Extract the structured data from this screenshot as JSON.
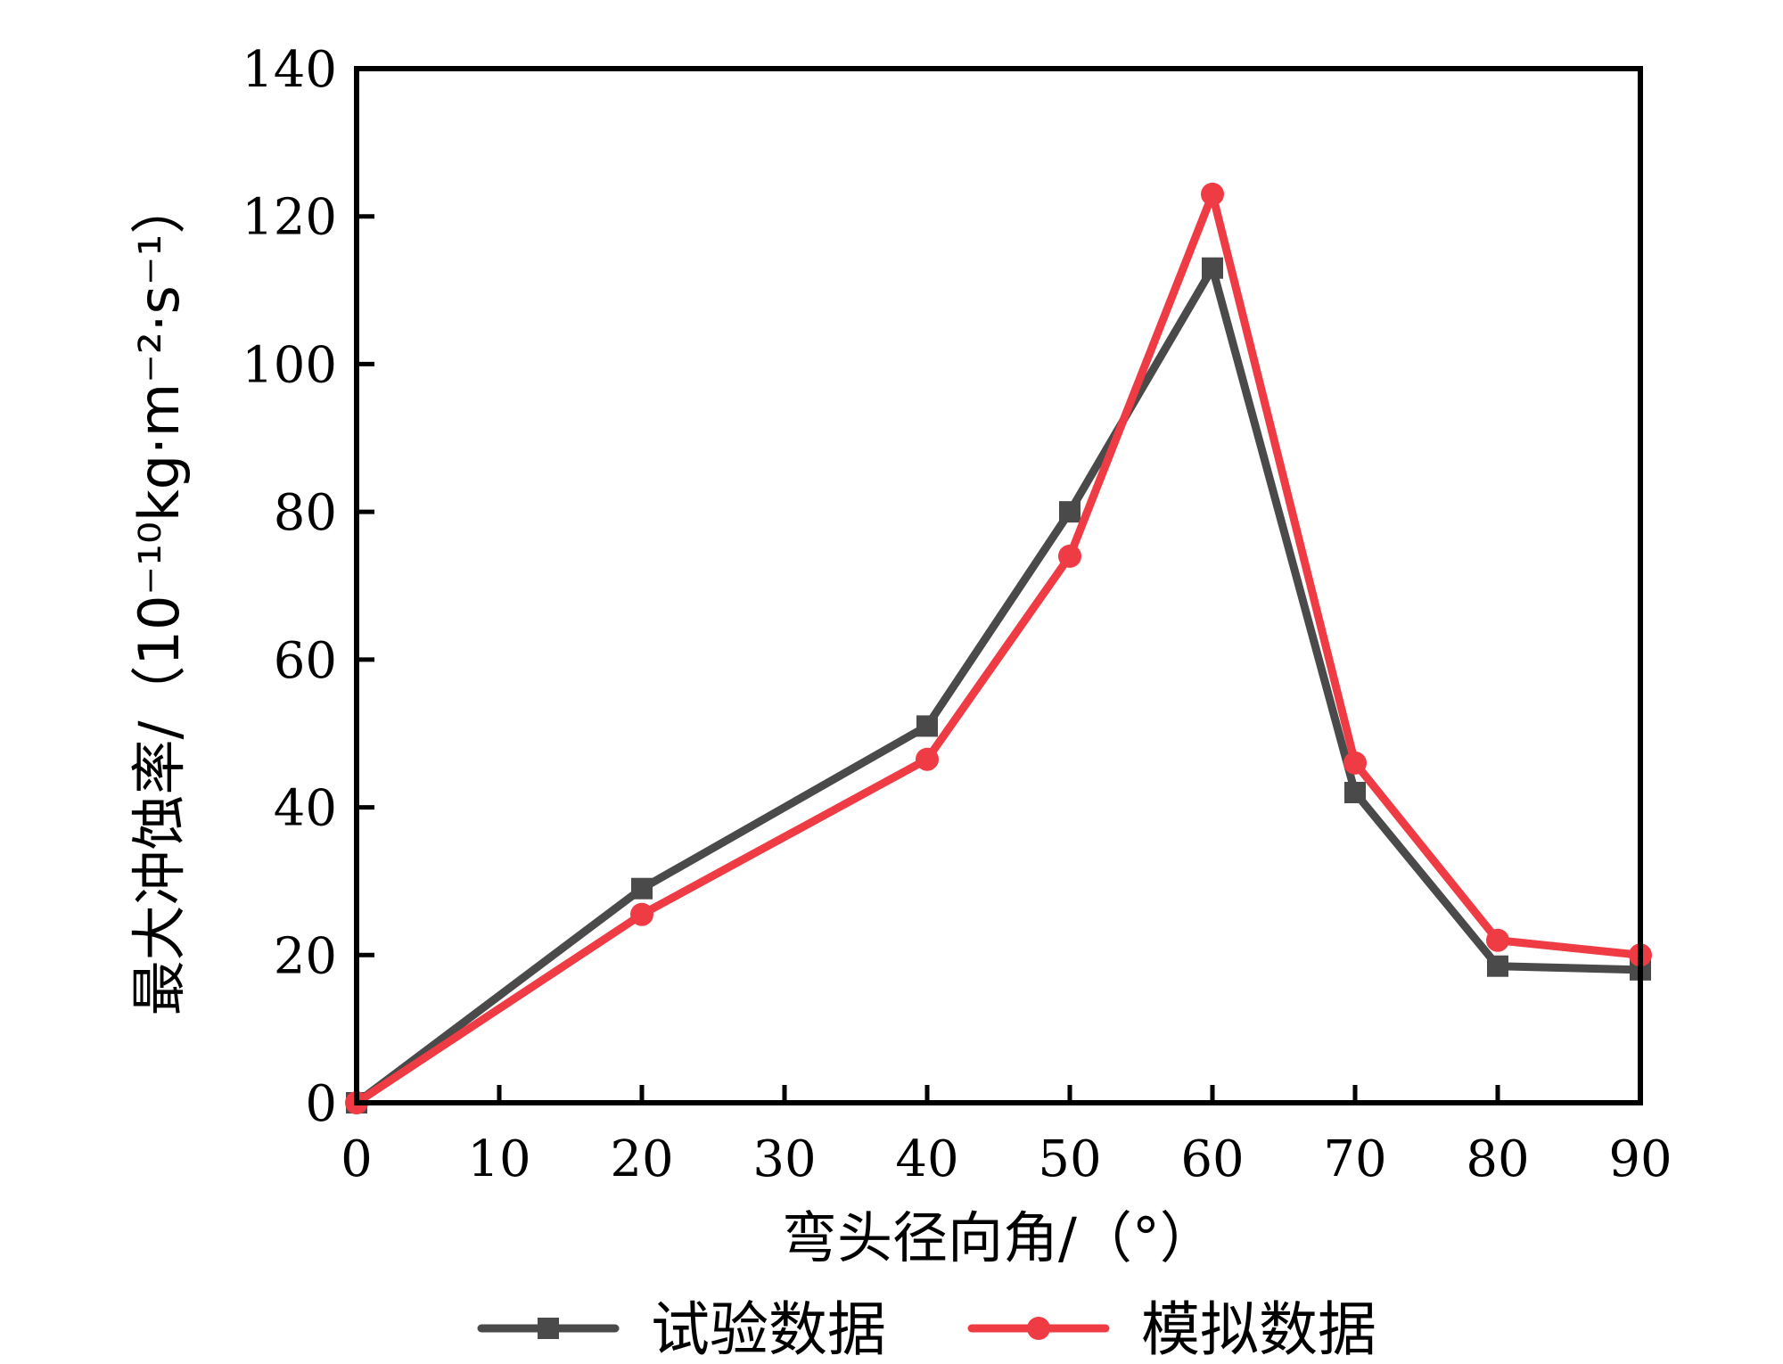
{
  "chart_data": {
    "type": "line",
    "xlabel": "弯头径向角/（°）",
    "ylabel": "最大冲蚀率/（10⁻¹⁰kg·m⁻²·s⁻¹）",
    "xlim": [
      0,
      90
    ],
    "ylim": [
      0,
      140
    ],
    "xticks": [
      0,
      10,
      20,
      30,
      40,
      50,
      60,
      70,
      80,
      90
    ],
    "yticks": [
      0,
      20,
      40,
      60,
      80,
      100,
      120,
      140
    ],
    "grid": false,
    "legend_position": "bottom",
    "series": [
      {
        "name": "试验数据",
        "color": "#4a4a4a",
        "marker": "square",
        "x": [
          0,
          20,
          40,
          50,
          60,
          70,
          80,
          90
        ],
        "y": [
          0,
          29,
          51,
          80,
          113,
          42,
          18.5,
          18
        ]
      },
      {
        "name": "模拟数据",
        "color": "#ef3b43",
        "marker": "circle",
        "x": [
          0,
          20,
          40,
          50,
          60,
          70,
          80,
          90
        ],
        "y": [
          0,
          25.5,
          46.5,
          74,
          123,
          46,
          22,
          20
        ]
      }
    ]
  }
}
